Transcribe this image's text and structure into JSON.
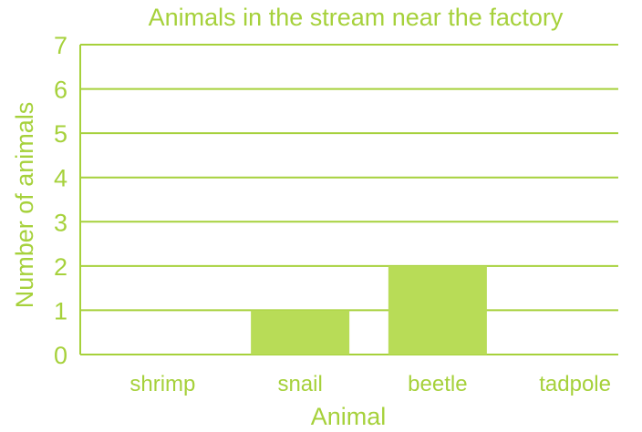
{
  "chart_data": {
    "type": "bar",
    "title": "Animals in the stream near the factory",
    "xlabel": "Animal",
    "ylabel": "Number of animals",
    "categories": [
      "shrimp",
      "snail",
      "beetle",
      "tadpole"
    ],
    "values": [
      0,
      1,
      2,
      0
    ],
    "ylim": [
      0,
      7
    ],
    "yticks": [
      "0",
      "1",
      "2",
      "3",
      "4",
      "5",
      "6",
      "7"
    ],
    "grid": true,
    "colors": {
      "accent": "#a6d13b",
      "bar": "#b8dc57"
    }
  }
}
